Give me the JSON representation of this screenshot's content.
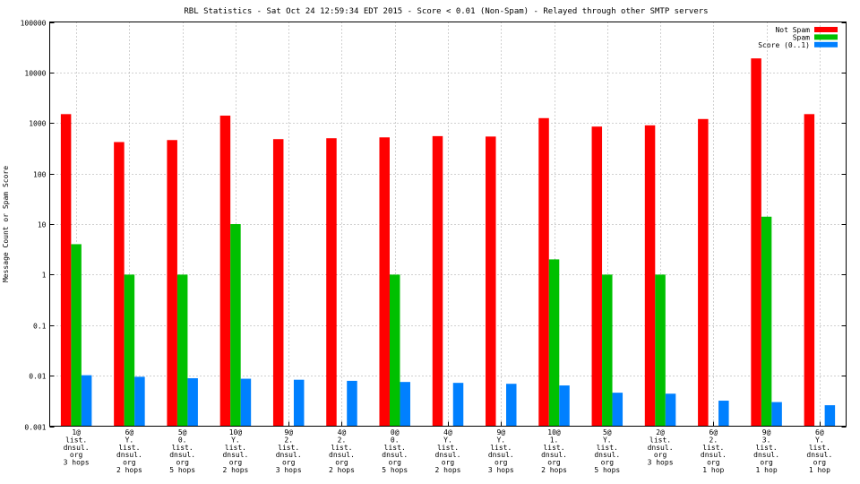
{
  "chart_data": {
    "type": "bar",
    "title": "RBL Statistics - Sat Oct 24 12:59:34 EDT 2015 - Score < 0.01 (Non-Spam) - Relayed through other SMTP servers",
    "ylabel": "Message Count or Spam Score",
    "xlabel": "",
    "yscale": "log",
    "ylim": [
      0.001,
      100000
    ],
    "yticks": [
      0.001,
      0.01,
      0.1,
      1,
      10,
      100,
      1000,
      10000,
      100000
    ],
    "ytick_labels": [
      "0.001",
      "0.01",
      "0.1",
      "1",
      "10",
      "100",
      "1000",
      "10000",
      "100000"
    ],
    "grid": true,
    "legend_position": "top-right",
    "categories": [
      [
        "1@",
        "list.",
        "dnsul.",
        "org",
        "3 hops"
      ],
      [
        "6@",
        "Y.",
        "list.",
        "dnsul.",
        "org",
        "2 hops"
      ],
      [
        "5@",
        "0.",
        "list.",
        "dnsul.",
        "org",
        "5 hops"
      ],
      [
        "10@",
        "Y.",
        "list.",
        "dnsul.",
        "org",
        "2 hops"
      ],
      [
        "9@",
        "2.",
        "list.",
        "dnsul.",
        "org",
        "3 hops"
      ],
      [
        "4@",
        "2.",
        "list.",
        "dnsul.",
        "org",
        "2 hops"
      ],
      [
        "0@",
        "0.",
        "list.",
        "dnsul.",
        "org",
        "5 hops"
      ],
      [
        "4@",
        "Y.",
        "list.",
        "dnsul.",
        "org",
        "2 hops"
      ],
      [
        "9@",
        "Y.",
        "list.",
        "dnsul.",
        "org",
        "3 hops"
      ],
      [
        "10@",
        "1.",
        "list.",
        "dnsul.",
        "org",
        "2 hops"
      ],
      [
        "5@",
        "Y.",
        "list.",
        "dnsul.",
        "org",
        "5 hops"
      ],
      [
        "2@",
        "list.",
        "dnsul.",
        "org",
        "3 hops"
      ],
      [
        "6@",
        "2.",
        "list.",
        "dnsul.",
        "org",
        "1 hop"
      ],
      [
        "9@",
        "3.",
        "list.",
        "dnsul.",
        "org",
        "1 hop"
      ],
      [
        "6@",
        "Y.",
        "list.",
        "dnsul.",
        "org",
        "1 hop"
      ]
    ],
    "series": [
      {
        "name": "Not Spam",
        "color": "#ff0000",
        "values": [
          1500,
          420,
          460,
          1400,
          480,
          500,
          520,
          550,
          540,
          1250,
          850,
          900,
          1200,
          19000,
          1500
        ]
      },
      {
        "name": "Spam",
        "color": "#00c000",
        "values": [
          4,
          1,
          1,
          10,
          null,
          null,
          1,
          null,
          null,
          2,
          1,
          1,
          null,
          14,
          null
        ]
      },
      {
        "name": "Score (0..1)",
        "color": "#0080ff",
        "values": [
          0.0102,
          0.0095,
          0.0089,
          0.0087,
          0.0083,
          0.0079,
          0.0075,
          0.0072,
          0.0069,
          0.0064,
          0.0046,
          0.0044,
          0.0032,
          0.003,
          0.0026
        ]
      }
    ]
  }
}
